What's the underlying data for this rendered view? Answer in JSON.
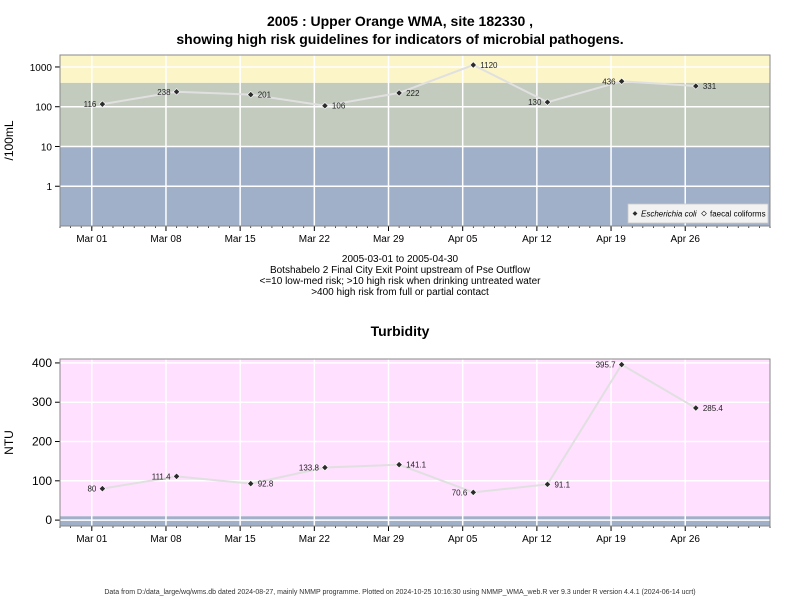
{
  "chart_data": [
    {
      "type": "line",
      "title": "2005 : Upper Orange WMA, site 182330 ,",
      "subtitle": "showing high risk guidelines for indicators of microbial pathogens.",
      "ylabel": "/100mL",
      "yscale": "log",
      "ylim": [
        0.1,
        2000
      ],
      "yticks": [
        1,
        10,
        100,
        1000
      ],
      "ytick_labels": [
        "1",
        "10",
        "100",
        "1000"
      ],
      "xlim": [
        "2005-02-26",
        "2005-05-04"
      ],
      "xticks": [
        "2005-03-01",
        "2005-03-08",
        "2005-03-15",
        "2005-03-22",
        "2005-03-29",
        "2005-04-05",
        "2005-04-12",
        "2005-04-19",
        "2005-04-26"
      ],
      "xtick_labels": [
        "Mar 01",
        "Mar 08",
        "Mar 15",
        "Mar 22",
        "Mar 29",
        "Apr 05",
        "Apr 12",
        "Apr 19",
        "Apr 26"
      ],
      "bands": [
        {
          "from": 0.1,
          "to": 10,
          "color": "#a0b0c8"
        },
        {
          "from": 10,
          "to": 400,
          "color": "#c2cbbe"
        },
        {
          "from": 400,
          "to": 2000,
          "color": "#fbf5c8"
        }
      ],
      "series": [
        {
          "name": "Escherichia coli",
          "marker": "filled",
          "x": [
            "2005-03-02",
            "2005-03-09",
            "2005-03-16",
            "2005-03-23",
            "2005-03-30",
            "2005-04-06",
            "2005-04-13",
            "2005-04-20",
            "2005-04-27"
          ],
          "values": [
            116,
            238,
            201,
            106,
            222,
            1120,
            130,
            436,
            331
          ],
          "labels": [
            "116",
            "238",
            "201",
            "106",
            "222",
            "1120",
            "130",
            "436",
            "331"
          ]
        },
        {
          "name": "faecal coliforms",
          "marker": "open",
          "x": [],
          "values": []
        }
      ],
      "legend": {
        "position": "bottom-right",
        "items": [
          "Escherichia coli",
          "faecal coliforms"
        ]
      },
      "grid": true,
      "notes": [
        "2005-03-01 to 2005-04-30",
        "Botshabelo 2 Final City Exit Point upstream of Pse Outflow",
        "<=10 low-med risk; >10 high risk when drinking untreated water",
        ">400 high risk from full or partial contact"
      ]
    },
    {
      "type": "line",
      "title": "Turbidity",
      "ylabel": "NTU",
      "ylim": [
        -15,
        410
      ],
      "yticks": [
        0,
        100,
        200,
        300,
        400
      ],
      "ytick_labels": [
        "0",
        "100",
        "200",
        "300",
        "400"
      ],
      "xlim": [
        "2005-02-26",
        "2005-05-04"
      ],
      "xticks": [
        "2005-03-01",
        "2005-03-08",
        "2005-03-15",
        "2005-03-22",
        "2005-03-29",
        "2005-04-05",
        "2005-04-12",
        "2005-04-19",
        "2005-04-26"
      ],
      "xtick_labels": [
        "Mar 01",
        "Mar 08",
        "Mar 15",
        "Mar 22",
        "Mar 29",
        "Apr 05",
        "Apr 12",
        "Apr 19",
        "Apr 26"
      ],
      "bands": [
        {
          "from": -15,
          "to": 10,
          "color": "#a0b0c8"
        },
        {
          "from": 10,
          "to": 410,
          "color": "#ffe0ff"
        }
      ],
      "series": [
        {
          "x": [
            "2005-03-02",
            "2005-03-09",
            "2005-03-16",
            "2005-03-23",
            "2005-03-30",
            "2005-04-06",
            "2005-04-13",
            "2005-04-20",
            "2005-04-27"
          ],
          "values": [
            80,
            111.4,
            92.8,
            133.8,
            141.1,
            70.6,
            91.1,
            395.7,
            285.4
          ],
          "labels": [
            "80",
            "111.4",
            "92.8",
            "133.8",
            "141.1",
            "70.6",
            "91.1",
            "395.7",
            "285.4"
          ]
        }
      ],
      "grid": true
    }
  ],
  "footer": "Data from D:/data_large/wq/wms.db dated 2024-08-27, mainly NMMP programme. Plotted on 2024-10-25 10:16:30 using NMMP_WMA_web.R ver 9.3 under R version 4.4.1 (2024-06-14 ucrt)",
  "colors": {
    "point": "#2b2b2b",
    "line": "#e0e0e0",
    "grid": "#ffffff",
    "frame": "#888888"
  }
}
